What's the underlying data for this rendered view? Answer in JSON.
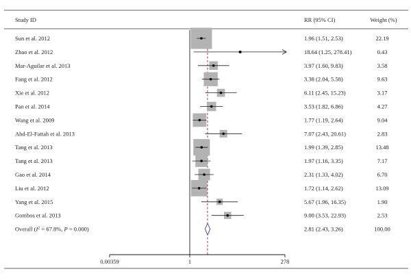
{
  "chart_data": {
    "type": "forest",
    "headers": {
      "study": "Study ID",
      "ci": "RR (95% CI)",
      "weight": "Weight (%)"
    },
    "x_scale": "log",
    "xlim": [
      0.00359,
      278
    ],
    "x_ticks": [
      {
        "value": 0.00359,
        "label": "0.00359"
      },
      {
        "value": 1,
        "label": "1"
      },
      {
        "value": 278,
        "label": "278"
      }
    ],
    "null_line": 1,
    "pooled_line": 2.81,
    "studies": [
      {
        "name": "Sun et al. 2012",
        "rr": 1.96,
        "lo": 1.51,
        "hi": 2.53,
        "ci_text": "1.96 (1.51, 2.53)",
        "weight": 22.19,
        "weight_text": "22.19"
      },
      {
        "name": "Zhao et al. 2012",
        "rr": 18.64,
        "lo": 1.25,
        "hi": 278.41,
        "ci_text": "18.64 (1.25, 278.41)",
        "weight": 0.43,
        "weight_text": "0.43",
        "arrow_right": true
      },
      {
        "name": "Mar-Aguilar et al. 2013",
        "rr": 3.97,
        "lo": 1.6,
        "hi": 9.83,
        "ci_text": "3.97 (1.60, 9.83)",
        "weight": 3.58,
        "weight_text": "3.58"
      },
      {
        "name": "Fang et al. 2012",
        "rr": 3.38,
        "lo": 2.04,
        "hi": 5.58,
        "ci_text": "3.38 (2.04, 5.58)",
        "weight": 9.63,
        "weight_text": "9.63"
      },
      {
        "name": "Xie et al. 2012",
        "rr": 6.11,
        "lo": 2.45,
        "hi": 15.23,
        "ci_text": "6.11 (2.45, 15.23)",
        "weight": 3.17,
        "weight_text": "3.17"
      },
      {
        "name": "Pan et al. 2014",
        "rr": 3.53,
        "lo": 1.82,
        "hi": 6.86,
        "ci_text": "3.53 (1.82, 6.86)",
        "weight": 4.27,
        "weight_text": "4.27"
      },
      {
        "name": "Wang et al. 2009",
        "rr": 1.77,
        "lo": 1.19,
        "hi": 2.64,
        "ci_text": "1.77 (1.19, 2.64)",
        "weight": 9.04,
        "weight_text": "9.04"
      },
      {
        "name": "Abd-El-Fattah et al. 2013",
        "rr": 7.07,
        "lo": 2.43,
        "hi": 20.61,
        "ci_text": "7.07 (2.43, 20.61)",
        "weight": 2.83,
        "weight_text": "2.83"
      },
      {
        "name": "Tang et al. 2013",
        "rr": 1.99,
        "lo": 1.39,
        "hi": 2.85,
        "ci_text": "1.99 (1.39, 2.85)",
        "weight": 13.48,
        "weight_text": "13.48"
      },
      {
        "name": "Tang et al. 2013",
        "rr": 1.97,
        "lo": 1.16,
        "hi": 3.35,
        "ci_text": "1.97 (1.16, 3.35)",
        "weight": 7.17,
        "weight_text": "7.17"
      },
      {
        "name": "Gao et al. 2014",
        "rr": 2.31,
        "lo": 1.33,
        "hi": 4.02,
        "ci_text": "2.31 (1.33, 4.02)",
        "weight": 6.7,
        "weight_text": "6.70"
      },
      {
        "name": "Liu et al. 2012",
        "rr": 1.72,
        "lo": 1.14,
        "hi": 2.62,
        "ci_text": "1.72 (1.14, 2.62)",
        "weight": 13.09,
        "weight_text": "13.09"
      },
      {
        "name": "Yang et al. 2015",
        "rr": 5.67,
        "lo": 1.96,
        "hi": 16.35,
        "ci_text": "5.67 (1.96, 16.35)",
        "weight": 1.9,
        "weight_text": "1.90"
      },
      {
        "name": "Gombos et al. 2013",
        "rr": 9.0,
        "lo": 3.53,
        "hi": 22.93,
        "ci_text": "9.00 (3.53, 22.93)",
        "weight": 2.53,
        "weight_text": "2.53"
      }
    ],
    "overall": {
      "label_prefix": "Overall (",
      "label_i2_symbol": "I",
      "label_i2_sup": "2",
      "label_rest": " = 67.8%, ",
      "label_p": "P",
      "label_p_rest": " = 0.000)",
      "rr": 2.81,
      "lo": 2.43,
      "hi": 3.26,
      "ci_text": "2.81 (2.43, 3.26)",
      "weight_text": "100.00"
    },
    "colors": {
      "box": "#b3b3b3",
      "line": "#1a1a1a",
      "pooled_line": "#b03040",
      "diamond": "#5a4a9a"
    }
  }
}
